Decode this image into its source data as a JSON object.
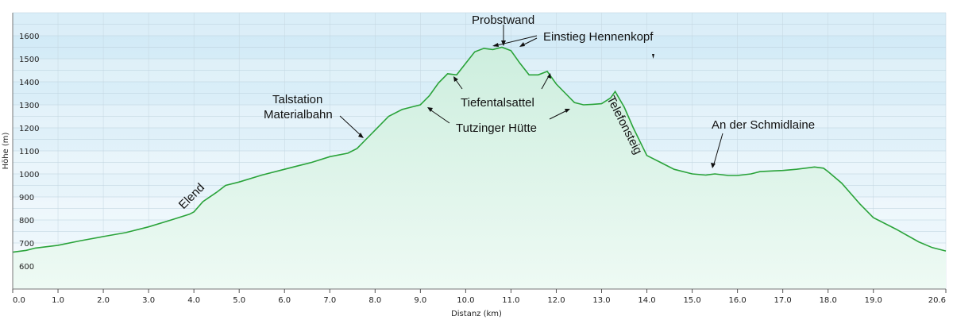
{
  "chart_data": {
    "type": "area",
    "xlabel": "Distanz  (km)",
    "ylabel": "Höhe (m)",
    "xlim": [
      0,
      20.6
    ],
    "ylim": [
      500,
      1700
    ],
    "x_ticks": [
      0,
      1,
      2,
      3,
      4,
      5,
      6,
      7,
      8,
      9,
      10,
      11,
      12,
      13,
      14,
      15,
      16,
      17,
      18,
      19,
      20.6
    ],
    "x_tick_labels": [
      "0.0",
      "1.0",
      "2.0",
      "3.0",
      "4.0",
      "5.0",
      "6.0",
      "7.0",
      "8.0",
      "9.0",
      "10.0",
      "11.0",
      "12.0",
      "13.0",
      "14.0",
      "15.0",
      "16.0",
      "17.0",
      "18.0",
      "19.0",
      "20.6"
    ],
    "y_ticks": [
      600,
      700,
      800,
      900,
      1000,
      1100,
      1200,
      1300,
      1400,
      1500,
      1600
    ],
    "y_tick_labels": [
      "600",
      "700",
      "800",
      "900",
      "1000",
      "1100",
      "1200",
      "1300",
      "1400",
      "1500",
      "1600"
    ],
    "grid": true,
    "line_color": "#2aa33a",
    "series": [
      {
        "x": [
          0,
          0.3,
          0.5,
          1.0,
          1.5,
          2.0,
          2.5,
          3.0,
          3.5,
          3.9,
          4.0,
          4.2,
          4.5,
          4.7,
          5.0,
          5.5,
          6.0,
          6.3,
          6.6,
          7.0,
          7.4,
          7.6,
          7.8,
          8.0,
          8.3,
          8.6,
          8.8,
          9.0,
          9.2,
          9.4,
          9.6,
          9.8,
          10.0,
          10.2,
          10.4,
          10.6,
          10.8,
          11.0,
          11.2,
          11.4,
          11.6,
          11.8,
          12.0,
          12.2,
          12.4,
          12.6,
          12.8,
          13.0,
          13.2,
          13.3,
          13.5,
          13.7,
          14.0,
          14.3,
          14.6,
          15.0,
          15.3,
          15.5,
          15.8,
          16.0,
          16.3,
          16.5,
          16.8,
          17.0,
          17.3,
          17.7,
          17.9,
          18.0,
          18.3,
          18.7,
          19.0,
          19.5,
          20.0,
          20.3,
          20.6
        ],
        "y": [
          660,
          668,
          678,
          690,
          710,
          728,
          745,
          770,
          800,
          825,
          835,
          880,
          920,
          950,
          965,
          995,
          1020,
          1035,
          1050,
          1075,
          1090,
          1110,
          1150,
          1190,
          1250,
          1280,
          1290,
          1300,
          1340,
          1395,
          1435,
          1430,
          1480,
          1530,
          1545,
          1540,
          1550,
          1535,
          1480,
          1430,
          1430,
          1445,
          1390,
          1350,
          1310,
          1300,
          1302,
          1305,
          1330,
          1358,
          1290,
          1200,
          1080,
          1050,
          1020,
          1000,
          995,
          1000,
          993,
          993,
          1000,
          1010,
          1013,
          1015,
          1020,
          1030,
          1025,
          1010,
          960,
          870,
          810,
          760,
          705,
          680,
          665
        ]
      }
    ],
    "annotations": [
      {
        "text": "Probstwand"
      },
      {
        "text": "Einstieg Hennenkopf"
      },
      {
        "text": "Tiefentalsattel"
      },
      {
        "text": "Talstation"
      },
      {
        "text": "Materialbahn"
      },
      {
        "text": "Tutzinger Hütte"
      },
      {
        "text": "An der Schmidlaine"
      },
      {
        "text": "Elend"
      },
      {
        "text": "Telefonsteig"
      }
    ]
  }
}
